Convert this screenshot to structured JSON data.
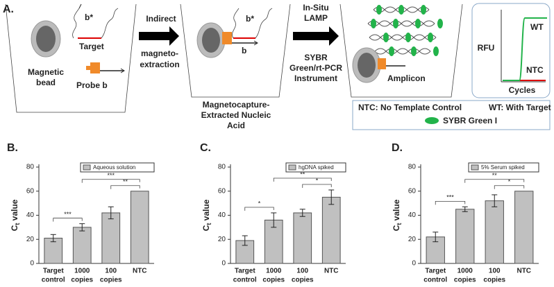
{
  "diagram": {
    "label": "A.",
    "target": "Target",
    "b_star": "b*",
    "bead": [
      "Magnetic",
      "bead"
    ],
    "probe": "Probe b",
    "step1": [
      "Indirect",
      "magneto-",
      "extraction"
    ],
    "b_star_2": "b*",
    "b_2": "b",
    "extracted": [
      "Magnetocapture-",
      "Extracted Nucleic",
      "Acid"
    ],
    "step2_top": [
      "In-Situ",
      "LAMP"
    ],
    "step2_bottom": [
      "SYBR",
      "Green/rt-PCR",
      "Instrument"
    ],
    "amplicon": "Amplicon",
    "rfu": "RFU",
    "wt": "WT",
    "ntc": "NTC",
    "cycles": "Cycles",
    "legend": [
      "NTC: No Template Control",
      "WT: With Target",
      "SYBR Green I"
    ]
  },
  "chart_data": [
    {
      "type": "bar",
      "label": "B.",
      "legend": "Aqueous solution",
      "color": "#c0c0c0",
      "y_label": [
        "C",
        "t",
        " value"
      ],
      "categories": [
        [
          "Target",
          "control"
        ],
        [
          "1000",
          "copies"
        ],
        [
          "100",
          "copies"
        ],
        [
          "NTC"
        ]
      ],
      "values": [
        21,
        30,
        42,
        60
      ],
      "errors": [
        3,
        3,
        5,
        null
      ],
      "ylim": [
        0,
        80
      ],
      "yticks": [
        0,
        20,
        40,
        60,
        80
      ],
      "significance": [
        {
          "from": 0,
          "to": 1,
          "label": "***"
        },
        {
          "from": 1,
          "to": 3,
          "label": "***"
        },
        {
          "from": 2,
          "to": 3,
          "label": "**"
        }
      ]
    },
    {
      "type": "bar",
      "label": "C.",
      "legend": "hgDNA spiked",
      "color": "#c0c0c0",
      "y_label": [
        "C",
        "t",
        " value"
      ],
      "categories": [
        [
          "Target",
          "control"
        ],
        [
          "1000",
          "copies"
        ],
        [
          "100",
          "copies"
        ],
        [
          "NTC"
        ]
      ],
      "values": [
        19,
        36,
        42,
        55
      ],
      "errors": [
        4,
        6,
        3,
        6
      ],
      "ylim": [
        0,
        80
      ],
      "yticks": [
        0,
        20,
        40,
        60,
        80
      ],
      "significance": [
        {
          "from": 0,
          "to": 1,
          "label": "*"
        },
        {
          "from": 1,
          "to": 3,
          "label": "**"
        },
        {
          "from": 2,
          "to": 3,
          "label": "*"
        }
      ]
    },
    {
      "type": "bar",
      "label": "D.",
      "legend": "5% Serum spiked",
      "color": "#c0c0c0",
      "y_label": [
        "C",
        "t",
        " value"
      ],
      "categories": [
        [
          "Target",
          "control"
        ],
        [
          "1000",
          "copies"
        ],
        [
          "100",
          "copies"
        ],
        [
          "NTC"
        ]
      ],
      "values": [
        22,
        45,
        52,
        60
      ],
      "errors": [
        4,
        2,
        5,
        null
      ],
      "ylim": [
        0,
        80
      ],
      "yticks": [
        0,
        20,
        40,
        60,
        80
      ],
      "significance": [
        {
          "from": 0,
          "to": 1,
          "label": "***"
        },
        {
          "from": 1,
          "to": 3,
          "label": "**"
        },
        {
          "from": 2,
          "to": 3,
          "label": "*"
        }
      ]
    }
  ]
}
